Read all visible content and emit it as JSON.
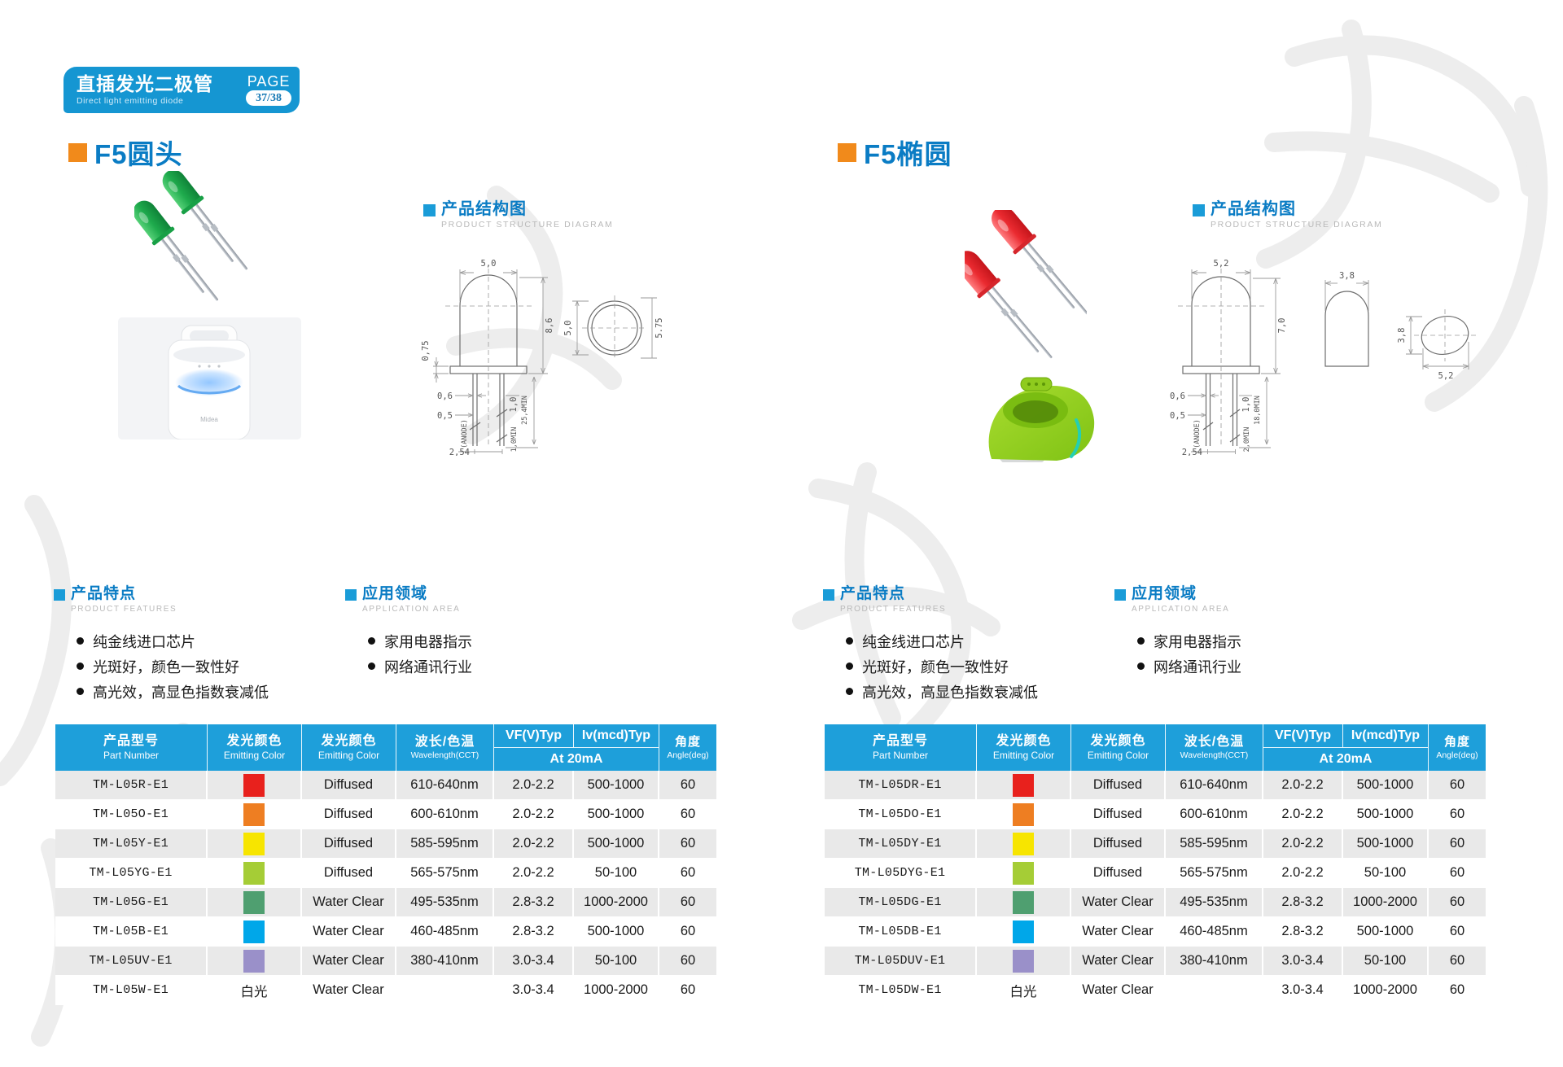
{
  "banner": {
    "title_cn": "直插发光二极管",
    "title_en": "Direct light emitting diode",
    "page_label": "PAGE",
    "page_number": "37/38"
  },
  "structure_heading": {
    "cn": "产品结构图",
    "en": "PRODUCT STRUCTURE DIAGRAM"
  },
  "features_heading": {
    "cn": "产品特点",
    "en": "PRODUCT FEATURES"
  },
  "applications_heading": {
    "cn": "应用领域",
    "en": "APPLICATION AREA"
  },
  "features": [
    "纯金线进口芯片",
    "光斑好，颜色一致性好",
    "高光效，高显色指数衰减低"
  ],
  "applications": [
    "家用电器指示",
    "网络通讯行业"
  ],
  "table_headers": {
    "part_cn": "产品型号",
    "part_en": "Part Number",
    "color_cn": "发光颜色",
    "color_en": "Emitting Color",
    "finish_cn": "发光颜色",
    "finish_en": "Emitting Color",
    "wavelength_cn": "波长/色温",
    "wavelength_en": "Wavelength(CCT)",
    "vf": "VF(V)Typ",
    "iv": "Iv(mcd)Typ",
    "at": "At 20mA",
    "angle_cn": "角度",
    "angle_en": "Angle(deg)"
  },
  "colors": {
    "banner_blue": "#1596d2",
    "title_blue": "#0a7cc4",
    "accent_orange": "#f18a1b",
    "table_header_blue": "#1e9fda",
    "row_alt_gray": "#e9e9e9"
  },
  "sections": [
    {
      "title": "F5圆头",
      "photo_logo": "Midea",
      "diagram": {
        "body_width": "5,0",
        "body_height": "8,6",
        "flange_height": "0,75",
        "lead_width_upper": "0,6",
        "lead_width_lower": "0,5",
        "lead_thickness": "1,0",
        "lead_length_min": "25,4MIN",
        "tip_min": "1,0MIN",
        "anode_label": "(ANODE)",
        "lead_pitch": "2,54",
        "top_view_diameter": "5,0",
        "top_view_outer": "5.75"
      },
      "rows": [
        {
          "part": "TM-L05R-E1",
          "swatch": "#e8211d",
          "finish": "Diffused",
          "wavelength": "610-640nm",
          "vf": "2.0-2.2",
          "iv": "500-1000",
          "angle": "60"
        },
        {
          "part": "TM-L05O-E1",
          "swatch": "#ee7e22",
          "finish": "Diffused",
          "wavelength": "600-610nm",
          "vf": "2.0-2.2",
          "iv": "500-1000",
          "angle": "60"
        },
        {
          "part": "TM-L05Y-E1",
          "swatch": "#f7e500",
          "finish": "Diffused",
          "wavelength": "585-595nm",
          "vf": "2.0-2.2",
          "iv": "500-1000",
          "angle": "60"
        },
        {
          "part": "TM-L05YG-E1",
          "swatch": "#a5cd36",
          "finish": "Diffused",
          "wavelength": "565-575nm",
          "vf": "2.0-2.2",
          "iv": "50-100",
          "angle": "60"
        },
        {
          "part": "TM-L05G-E1",
          "swatch": "#4f9f70",
          "finish": "Water Clear",
          "wavelength": "495-535nm",
          "vf": "2.8-3.2",
          "iv": "1000-2000",
          "angle": "60"
        },
        {
          "part": "TM-L05B-E1",
          "swatch": "#00a7e9",
          "finish": "Water Clear",
          "wavelength": "460-485nm",
          "vf": "2.8-3.2",
          "iv": "500-1000",
          "angle": "60"
        },
        {
          "part": "TM-L05UV-E1",
          "swatch": "#9a90c9",
          "finish": "Water Clear",
          "wavelength": "380-410nm",
          "vf": "3.0-3.4",
          "iv": "50-100",
          "angle": "60"
        },
        {
          "part": "TM-L05W-E1",
          "color_label": "白光",
          "finish": "Water Clear",
          "wavelength": "",
          "vf": "3.0-3.4",
          "iv": "1000-2000",
          "angle": "60"
        }
      ]
    },
    {
      "title": "F5椭圆",
      "diagram": {
        "body_width": "5,2",
        "body_height": "7,0",
        "side_width": "3,8",
        "lead_width_upper": "0,6",
        "lead_width_lower": "0,5",
        "lead_thickness": "1,0",
        "lead_length_min": "18,0MIN",
        "tip_min": "2,0MIN",
        "anode_label": "(ANODE)",
        "lead_pitch": "2,54",
        "top_view_height": "3,8",
        "top_view_width": "5,2"
      },
      "rows": [
        {
          "part": "TM-L05DR-E1",
          "swatch": "#e8211d",
          "finish": "Diffused",
          "wavelength": "610-640nm",
          "vf": "2.0-2.2",
          "iv": "500-1000",
          "angle": "60"
        },
        {
          "part": "TM-L05DO-E1",
          "swatch": "#ee7e22",
          "finish": "Diffused",
          "wavelength": "600-610nm",
          "vf": "2.0-2.2",
          "iv": "500-1000",
          "angle": "60"
        },
        {
          "part": "TM-L05DY-E1",
          "swatch": "#f7e500",
          "finish": "Diffused",
          "wavelength": "585-595nm",
          "vf": "2.0-2.2",
          "iv": "500-1000",
          "angle": "60"
        },
        {
          "part": "TM-L05DYG-E1",
          "swatch": "#a5cd36",
          "finish": "Diffused",
          "wavelength": "565-575nm",
          "vf": "2.0-2.2",
          "iv": "50-100",
          "angle": "60"
        },
        {
          "part": "TM-L05DG-E1",
          "swatch": "#4f9f70",
          "finish": "Water Clear",
          "wavelength": "495-535nm",
          "vf": "2.8-3.2",
          "iv": "1000-2000",
          "angle": "60"
        },
        {
          "part": "TM-L05DB-E1",
          "swatch": "#00a7e9",
          "finish": "Water Clear",
          "wavelength": "460-485nm",
          "vf": "2.8-3.2",
          "iv": "500-1000",
          "angle": "60"
        },
        {
          "part": "TM-L05DUV-E1",
          "swatch": "#9a90c9",
          "finish": "Water Clear",
          "wavelength": "380-410nm",
          "vf": "3.0-3.4",
          "iv": "50-100",
          "angle": "60"
        },
        {
          "part": "TM-L05DW-E1",
          "color_label": "白光",
          "finish": "Water Clear",
          "wavelength": "",
          "vf": "3.0-3.4",
          "iv": "1000-2000",
          "angle": "60"
        }
      ]
    }
  ]
}
